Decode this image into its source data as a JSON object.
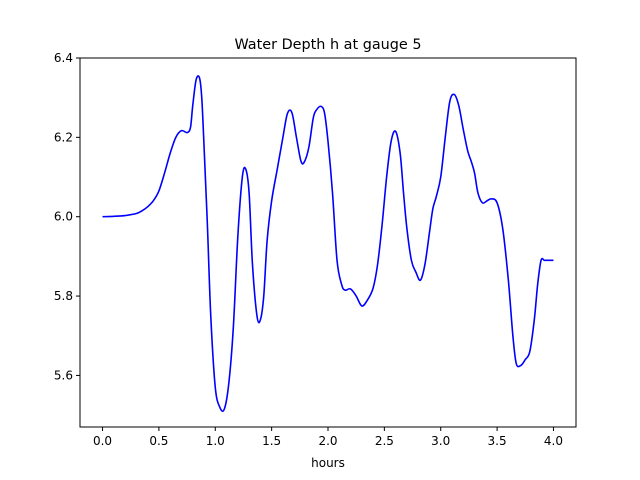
{
  "chart_data": {
    "type": "line",
    "title": "Water Depth h at gauge 5",
    "xlabel": "hours",
    "ylabel": "",
    "xlim": [
      -0.2,
      4.2
    ],
    "ylim": [
      5.47,
      6.4
    ],
    "xticks": [
      0.0,
      0.5,
      1.0,
      1.5,
      2.0,
      2.5,
      3.0,
      3.5,
      4.0
    ],
    "xtick_labels": [
      "0.0",
      "0.5",
      "1.0",
      "1.5",
      "2.0",
      "2.5",
      "3.0",
      "3.5",
      "4.0"
    ],
    "yticks": [
      5.6,
      5.8,
      6.0,
      6.2,
      6.4
    ],
    "ytick_labels": [
      "5.6",
      "5.8",
      "6.0",
      "6.2",
      "6.4"
    ],
    "grid": false,
    "series": [
      {
        "color": "#0000ff",
        "x": [
          0.0,
          0.1,
          0.2,
          0.3,
          0.35,
          0.4,
          0.45,
          0.5,
          0.55,
          0.6,
          0.65,
          0.7,
          0.75,
          0.78,
          0.8,
          0.83,
          0.86,
          0.88,
          0.9,
          0.93,
          0.96,
          1.0,
          1.04,
          1.08,
          1.12,
          1.16,
          1.2,
          1.24,
          1.27,
          1.3,
          1.33,
          1.37,
          1.4,
          1.43,
          1.46,
          1.5,
          1.55,
          1.6,
          1.64,
          1.68,
          1.72,
          1.76,
          1.79,
          1.83,
          1.87,
          1.9,
          1.94,
          1.97,
          2.0,
          2.04,
          2.08,
          2.12,
          2.15,
          2.2,
          2.25,
          2.3,
          2.35,
          2.4,
          2.44,
          2.48,
          2.52,
          2.56,
          2.6,
          2.64,
          2.67,
          2.7,
          2.74,
          2.78,
          2.82,
          2.86,
          2.9,
          2.93,
          2.96,
          3.0,
          3.04,
          3.08,
          3.12,
          3.16,
          3.2,
          3.24,
          3.27,
          3.3,
          3.33,
          3.37,
          3.41,
          3.45,
          3.5,
          3.55,
          3.6,
          3.64,
          3.67,
          3.71,
          3.75,
          3.79,
          3.83,
          3.86,
          3.89,
          3.92,
          3.95,
          3.98,
          4.0
        ],
        "y": [
          6.0,
          6.001,
          6.003,
          6.008,
          6.015,
          6.025,
          6.04,
          6.065,
          6.11,
          6.16,
          6.2,
          6.217,
          6.212,
          6.225,
          6.28,
          6.345,
          6.35,
          6.3,
          6.18,
          5.98,
          5.75,
          5.57,
          5.52,
          5.515,
          5.58,
          5.72,
          5.95,
          6.1,
          6.12,
          6.06,
          5.88,
          5.75,
          5.74,
          5.8,
          5.94,
          6.04,
          6.12,
          6.2,
          6.26,
          6.262,
          6.2,
          6.14,
          6.138,
          6.175,
          6.25,
          6.27,
          6.278,
          6.26,
          6.19,
          6.06,
          5.89,
          5.83,
          5.815,
          5.818,
          5.8,
          5.775,
          5.79,
          5.82,
          5.88,
          5.98,
          6.1,
          6.19,
          6.215,
          6.16,
          6.06,
          5.97,
          5.89,
          5.86,
          5.84,
          5.88,
          5.96,
          6.02,
          6.05,
          6.1,
          6.2,
          6.29,
          6.308,
          6.28,
          6.22,
          6.165,
          6.14,
          6.11,
          6.06,
          6.035,
          6.04,
          6.045,
          6.035,
          5.97,
          5.84,
          5.7,
          5.63,
          5.625,
          5.64,
          5.66,
          5.74,
          5.83,
          5.89,
          5.89,
          5.89,
          5.89,
          5.89
        ]
      }
    ]
  }
}
